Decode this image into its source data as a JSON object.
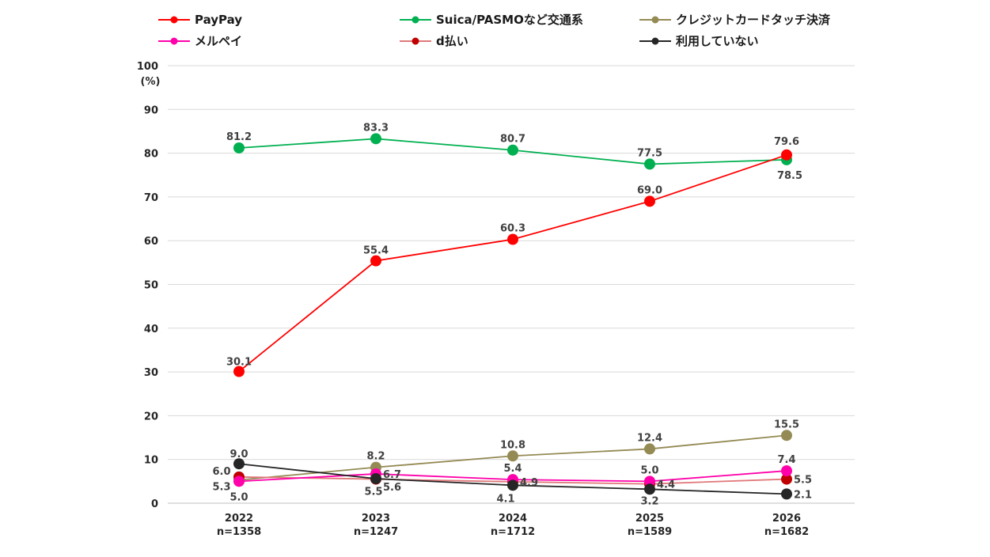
{
  "chart_data": {
    "type": "line",
    "ylim": [
      0,
      100
    ],
    "yticks": [
      0,
      10,
      20,
      30,
      40,
      50,
      60,
      70,
      80,
      90,
      100
    ],
    "ylabel": "(%)",
    "grid": true,
    "legend_position": "top",
    "categories": [
      {
        "year": "2022",
        "n": "n=1358"
      },
      {
        "year": "2023",
        "n": "n=1247"
      },
      {
        "year": "2024",
        "n": "n=1712"
      },
      {
        "year": "2025",
        "n": "n=1589"
      },
      {
        "year": "2026",
        "n": "n=1682"
      }
    ],
    "series": [
      {
        "name": "PayPay",
        "color": "#ff0000",
        "line_color": "#ff0000",
        "values": [
          30.1,
          55.4,
          60.3,
          69.0,
          79.6
        ],
        "labels": [
          "30.1",
          "55.4",
          "60.3",
          "69.0",
          "79.6"
        ]
      },
      {
        "name": "Suica/PASMOなど交通系",
        "color": "#00b050",
        "line_color": "#00b050",
        "values": [
          81.2,
          83.3,
          80.7,
          77.5,
          78.5
        ],
        "labels": [
          "81.2",
          "83.3",
          "80.7",
          "77.5",
          "78.5"
        ]
      },
      {
        "name": "クレジットカードタッチ決済",
        "color": "#948a54",
        "line_color": "#948a54",
        "values": [
          5.3,
          8.2,
          10.8,
          12.4,
          15.5
        ],
        "labels": [
          "5.3",
          "8.2",
          "10.8",
          "12.4",
          "15.5"
        ]
      },
      {
        "name": "メルペイ",
        "color": "#ff00aa",
        "line_color": "#ff00aa",
        "values": [
          5.0,
          6.7,
          5.4,
          5.0,
          7.4
        ],
        "labels": [
          "5.0",
          "6.7",
          "5.4",
          "5.0",
          "7.4"
        ]
      },
      {
        "name": "d払い",
        "color": "#c00000",
        "line_color": "#e0787a",
        "values": [
          6.0,
          5.5,
          4.9,
          4.4,
          5.5
        ],
        "labels": [
          "6.0",
          "5.5",
          "4.9",
          "4.4",
          "5.5"
        ]
      },
      {
        "name": "利用していない",
        "color": "#262626",
        "line_color": "#262626",
        "values": [
          9.0,
          5.6,
          4.1,
          3.2,
          2.1
        ],
        "labels": [
          "9.0",
          "5.6",
          "4.1",
          "3.2",
          "2.1"
        ]
      }
    ]
  }
}
